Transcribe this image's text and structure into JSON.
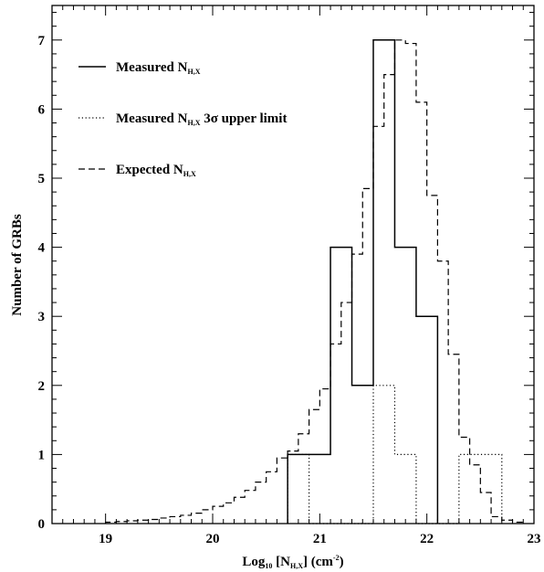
{
  "chart_data": {
    "type": "histogram",
    "xlabel": "Log₁₀ [N_H,X] (cm⁻²)",
    "ylabel": "Number of GRBs",
    "xlim": [
      18.5,
      23
    ],
    "ylim": [
      0,
      7.5
    ],
    "x_ticks": [
      "19",
      "20",
      "21",
      "22",
      "23"
    ],
    "y_ticks": [
      "0",
      "1",
      "2",
      "3",
      "4",
      "5",
      "6",
      "7"
    ],
    "legend_position": "top-left",
    "legend": [
      {
        "main": "Measured N",
        "sub": "H,X",
        "tail": "",
        "style": "solid"
      },
      {
        "main": "Measured N",
        "sub": "H,X",
        "tail": " 3σ upper limit",
        "style": "dotted"
      },
      {
        "main": "Expected N",
        "sub": "H,X",
        "tail": "",
        "style": "dashed"
      }
    ],
    "series": [
      {
        "name": "Measured N_H,X",
        "style": "solid",
        "bin_edges": [
          20.7,
          20.9,
          21.1,
          21.3,
          21.5,
          21.7,
          21.9,
          22.1
        ],
        "counts": [
          1,
          1,
          4,
          2,
          7,
          4,
          3
        ]
      },
      {
        "name": "Measured N_H,X 3σ upper limit",
        "style": "dotted",
        "bin_edges": [
          20.7,
          20.9,
          21.1,
          21.3,
          21.5,
          21.7,
          21.9,
          22.1,
          22.3,
          22.5,
          22.7
        ],
        "counts": [
          1,
          0,
          0,
          0,
          2,
          1,
          0,
          0,
          1,
          1
        ]
      },
      {
        "name": "Expected N_H,X",
        "style": "dashed",
        "bin_edges": [
          19.0,
          19.1,
          19.2,
          19.3,
          19.4,
          19.5,
          19.6,
          19.7,
          19.8,
          19.9,
          20.0,
          20.1,
          20.2,
          20.3,
          20.4,
          20.5,
          20.6,
          20.7,
          20.8,
          20.9,
          21.0,
          21.1,
          21.2,
          21.3,
          21.4,
          21.5,
          21.6,
          21.7,
          21.8,
          21.9,
          22.0,
          22.1,
          22.2,
          22.3,
          22.4,
          22.5,
          22.6,
          22.7,
          22.8,
          22.9
        ],
        "counts": [
          0.02,
          0.03,
          0.04,
          0.05,
          0.06,
          0.08,
          0.1,
          0.12,
          0.15,
          0.2,
          0.25,
          0.3,
          0.38,
          0.48,
          0.6,
          0.75,
          0.95,
          1.05,
          1.3,
          1.65,
          1.95,
          2.6,
          3.2,
          3.9,
          4.85,
          5.75,
          6.5,
          7.0,
          6.95,
          6.1,
          4.75,
          3.8,
          2.45,
          1.25,
          0.85,
          0.45,
          0.1,
          0.05,
          0.02
        ]
      }
    ]
  }
}
